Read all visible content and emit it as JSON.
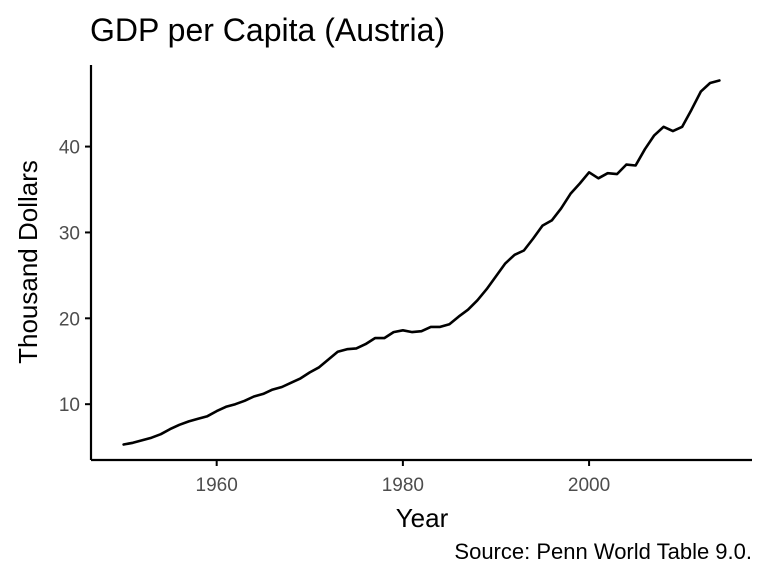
{
  "chart_data": {
    "type": "line",
    "title": "GDP per Capita (Austria)",
    "xlabel": "Year",
    "ylabel": "Thousand Dollars",
    "caption": "Source: Penn World Table 9.0.",
    "xlim": [
      1946.5,
      2017.5
    ],
    "ylim": [
      3.5,
      49.5
    ],
    "x_ticks": [
      1960,
      1980,
      2000
    ],
    "x_tick_labels": [
      "1960",
      "1980",
      "2000"
    ],
    "y_ticks": [
      10,
      20,
      30,
      40
    ],
    "y_tick_labels": [
      "10",
      "20",
      "30",
      "40"
    ],
    "grid": false,
    "legend": "none",
    "series": [
      {
        "name": "GDP per Capita",
        "color": "#000000",
        "x": [
          1950,
          1951,
          1952,
          1953,
          1954,
          1955,
          1956,
          1957,
          1958,
          1959,
          1960,
          1961,
          1962,
          1963,
          1964,
          1965,
          1966,
          1967,
          1968,
          1969,
          1970,
          1971,
          1972,
          1973,
          1974,
          1975,
          1976,
          1977,
          1978,
          1979,
          1980,
          1981,
          1982,
          1983,
          1984,
          1985,
          1986,
          1987,
          1988,
          1989,
          1990,
          1991,
          1992,
          1993,
          1994,
          1995,
          1996,
          1997,
          1998,
          1999,
          2000,
          2001,
          2002,
          2003,
          2004,
          2005,
          2006,
          2007,
          2008,
          2009,
          2010,
          2011,
          2012,
          2013,
          2014
        ],
        "values": [
          5.3,
          5.5,
          5.8,
          6.1,
          6.5,
          7.1,
          7.6,
          8.0,
          8.3,
          8.6,
          9.2,
          9.7,
          10.0,
          10.4,
          10.9,
          11.2,
          11.7,
          12.0,
          12.5,
          13.0,
          13.7,
          14.3,
          15.2,
          16.1,
          16.4,
          16.5,
          17.0,
          17.7,
          17.7,
          18.4,
          18.6,
          18.4,
          18.5,
          19.0,
          19.0,
          19.3,
          20.2,
          21.0,
          22.1,
          23.4,
          24.9,
          26.4,
          27.4,
          27.9,
          29.3,
          30.8,
          31.4,
          32.8,
          34.5,
          35.7,
          37.0,
          36.3,
          36.9,
          36.8,
          37.9,
          37.8,
          39.7,
          41.3,
          42.3,
          41.8,
          42.3,
          44.3,
          46.4,
          47.4,
          47.7
        ]
      }
    ]
  }
}
